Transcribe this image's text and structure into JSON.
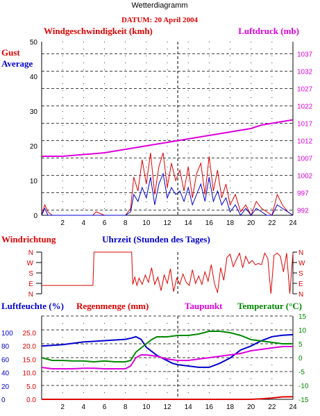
{
  "header": {
    "title": "Wetterdiagramm",
    "date_label": "DATUM: 20 April 2004"
  },
  "colors": {
    "red": "#dd0000",
    "blue": "#0000cc",
    "magenta": "#dd00dd",
    "green": "#008800",
    "grid": "#000000"
  },
  "chart_data": [
    {
      "id": "wind",
      "type": "line",
      "title_left": "Windgeschwindigkeit (kmh)",
      "title_right": "Luftdruck (mb)",
      "legend": [
        "Gust",
        "Average"
      ],
      "xlim": [
        0,
        24
      ],
      "x_ticks": [
        "2",
        "4",
        "6",
        "8",
        "10",
        "12",
        "14",
        "16",
        "18",
        "20",
        "22",
        "24"
      ],
      "ylim_left": [
        0,
        50
      ],
      "y_ticks_left": [
        "0",
        "10",
        "20",
        "30",
        "40",
        "50"
      ],
      "ylim_right": [
        990.5,
        1040.5
      ],
      "y_ticks_right": [
        "992",
        "997",
        "1002",
        "1007",
        "1012",
        "1017",
        "1022",
        "1027",
        "1032",
        "1037"
      ],
      "series": [
        {
          "name": "Gust",
          "color": "red",
          "axis": "left",
          "x": [
            0,
            0.3,
            0.6,
            1,
            2,
            4,
            4.9,
            5.2,
            6,
            8,
            8.5,
            8.8,
            9.2,
            9.6,
            10,
            10.4,
            10.8,
            11.2,
            11.6,
            12,
            12.4,
            12.8,
            13.2,
            13.6,
            14,
            14.4,
            14.8,
            15.2,
            15.6,
            16,
            16.4,
            16.8,
            17.2,
            17.6,
            18,
            18.5,
            19,
            19.5,
            20,
            20.5,
            21,
            21.5,
            22,
            22.5,
            23,
            23.5,
            24
          ],
          "y": [
            0,
            3,
            1,
            0,
            0,
            0,
            0,
            1,
            0,
            0,
            2,
            11,
            7,
            16,
            9,
            18,
            6,
            14,
            18,
            8,
            15,
            10,
            13,
            7,
            14,
            5,
            12,
            15,
            6,
            17,
            7,
            13,
            5,
            9,
            3,
            6,
            1,
            3,
            0,
            4,
            2,
            1,
            0,
            6,
            3,
            1,
            0
          ]
        },
        {
          "name": "Average",
          "color": "blue",
          "axis": "left",
          "x": [
            0,
            0.3,
            0.6,
            1,
            2,
            8,
            8.5,
            8.8,
            9.2,
            9.6,
            10,
            10.4,
            10.8,
            11.2,
            11.6,
            12,
            12.4,
            12.8,
            13.2,
            13.6,
            14,
            14.4,
            14.8,
            15.2,
            15.6,
            16,
            16.4,
            16.8,
            17.2,
            17.6,
            18,
            18.5,
            19,
            19.5,
            20,
            20.5,
            21,
            21.5,
            22,
            22.5,
            23,
            23.5,
            24
          ],
          "y": [
            0,
            2,
            0,
            0,
            0,
            0,
            1,
            6,
            4,
            8,
            5,
            11,
            3,
            9,
            12,
            5,
            8,
            6,
            7,
            4,
            8,
            3,
            6,
            9,
            4,
            11,
            4,
            7,
            3,
            5,
            1,
            3,
            0,
            2,
            0,
            2,
            1,
            0,
            0,
            3,
            2,
            1,
            0
          ]
        },
        {
          "name": "Luftdruck",
          "color": "magenta",
          "axis": "right",
          "x": [
            0,
            2,
            4,
            6,
            7,
            8,
            9,
            10,
            11,
            12,
            13,
            14,
            15,
            16,
            17,
            18,
            19,
            20,
            21,
            22,
            23,
            24
          ],
          "y": [
            1007.5,
            1007.5,
            1008,
            1008.5,
            1009,
            1009.5,
            1010,
            1010.5,
            1011,
            1011.5,
            1012,
            1012.5,
            1013,
            1013.5,
            1014,
            1014.5,
            1015,
            1015.5,
            1016.5,
            1017,
            1017.5,
            1018
          ]
        }
      ]
    },
    {
      "id": "direction",
      "type": "line",
      "title_left": "Windrichtung",
      "title_center": "Uhrzeit (Stunden des Tages)",
      "xlim": [
        0,
        24
      ],
      "y_categories": [
        "N",
        "E",
        "S",
        "W",
        "N"
      ],
      "series": [
        {
          "name": "Windrichtung",
          "color": "red",
          "x": [
            0,
            0.5,
            4.9,
            5,
            8.6,
            8.7,
            8.9,
            9.1,
            9.3,
            9.6,
            9.9,
            10.2,
            10.5,
            10.8,
            11.1,
            11.4,
            11.7,
            12,
            12.3,
            12.6,
            12.9,
            13.2,
            13.5,
            13.8,
            14.1,
            14.4,
            14.7,
            15,
            15.3,
            15.6,
            15.9,
            16.2,
            16.5,
            16.8,
            17.1,
            17.4,
            17.7,
            18,
            18.3,
            18.6,
            18.9,
            19.2,
            19.5,
            19.8,
            20.1,
            20.4,
            20.7,
            21,
            21.3,
            21.6,
            21.9,
            22.2,
            22.5,
            22.8,
            23.1,
            23.4,
            23.7,
            24
          ],
          "y": [
            0.8,
            0.8,
            0.8,
            4,
            4,
            0.9,
            1.6,
            0.8,
            1.5,
            0.9,
            1.8,
            1.1,
            2.5,
            0.9,
            1.6,
            0.3,
            1.8,
            1.0,
            2.4,
            0.2,
            1.5,
            0.9,
            1.9,
            1.1,
            0.8,
            2.3,
            1.0,
            1.7,
            0.9,
            2.1,
            1.2,
            2.8,
            1.0,
            0.1,
            2.5,
            1.3,
            3.5,
            3.8,
            2.6,
            3.3,
            3.9,
            2.5,
            3.6,
            2.9,
            3.2,
            2.8,
            2.9,
            2.8,
            3.9,
            3.4,
            0,
            3.7,
            3.9,
            3.6,
            2.1,
            3.9,
            0,
            3.9
          ]
        }
      ]
    },
    {
      "id": "humidity",
      "type": "line",
      "titles": [
        "Luftfeuchte (%)",
        "Regenmenge (mm)",
        "Taupunkt",
        "Temperatur (°C)"
      ],
      "xlim": [
        0,
        24
      ],
      "x_ticks": [
        "2",
        "4",
        "6",
        "8",
        "10",
        "12",
        "14",
        "16",
        "18",
        "20",
        "22",
        "24"
      ],
      "y_ticks_humidity": [
        "0",
        "20",
        "40",
        "60",
        "80",
        "100"
      ],
      "y_ticks_rain": [
        "0.0",
        "5.0",
        "10.0",
        "15.0",
        "20.0",
        "25.0"
      ],
      "ylim_temp": [
        -15,
        15
      ],
      "y_ticks_temp": [
        "-15",
        "-10",
        "-5",
        "0",
        "5",
        "10",
        "15"
      ],
      "series": [
        {
          "name": "Luftfeuchte",
          "color": "blue",
          "axis": "humidity",
          "ylim": [
            0,
            125
          ],
          "x": [
            0,
            2,
            4,
            6,
            8,
            8.6,
            9,
            9.5,
            10,
            11,
            12,
            12.5,
            13,
            14,
            15,
            16,
            17,
            18,
            19,
            20,
            21,
            22,
            23,
            24
          ],
          "y": [
            80,
            82,
            86,
            88,
            90,
            92,
            94,
            90,
            78,
            66,
            58,
            54,
            52,
            50,
            48,
            48,
            54,
            62,
            74,
            80,
            88,
            94,
            96,
            97
          ]
        },
        {
          "name": "Regenmenge",
          "color": "red",
          "axis": "rain",
          "ylim": [
            0,
            25
          ],
          "x": [
            0,
            20,
            21,
            22,
            23,
            24
          ],
          "y": [
            0,
            0,
            0.2,
            0.5,
            0.9,
            1.0
          ]
        },
        {
          "name": "Taupunkt",
          "color": "magenta",
          "axis": "temp",
          "x": [
            0,
            1,
            2,
            3,
            4,
            5,
            6,
            7,
            8,
            8.5,
            9,
            9.5,
            10,
            11,
            12,
            13,
            14,
            15,
            16,
            17,
            18,
            19,
            20,
            21,
            22,
            23,
            24
          ],
          "y": [
            -3.5,
            -4,
            -4,
            -4,
            -3.8,
            -3.8,
            -4,
            -4,
            -4,
            -3,
            0,
            1,
            1,
            0.5,
            -0.5,
            -1,
            -1,
            -0.5,
            0,
            0.5,
            1,
            1.5,
            2.5,
            3,
            3.5,
            4,
            4
          ]
        },
        {
          "name": "Temperatur",
          "color": "green",
          "axis": "temp",
          "x": [
            0,
            1,
            2,
            3,
            4,
            5,
            6,
            7,
            8,
            8.5,
            9,
            9.5,
            10,
            10.5,
            11,
            12,
            13,
            14,
            15,
            16,
            17,
            18,
            19,
            20,
            21,
            22,
            23,
            24
          ],
          "y": [
            0,
            -1,
            -1,
            -1.2,
            -1.2,
            -1.5,
            -1.2,
            -1.5,
            -1.5,
            -1,
            2,
            3.5,
            5,
            6.5,
            7.5,
            7.5,
            8,
            8,
            8.5,
            9.5,
            9.5,
            9,
            8,
            6.5,
            6,
            5.5,
            5,
            5
          ]
        }
      ]
    }
  ]
}
